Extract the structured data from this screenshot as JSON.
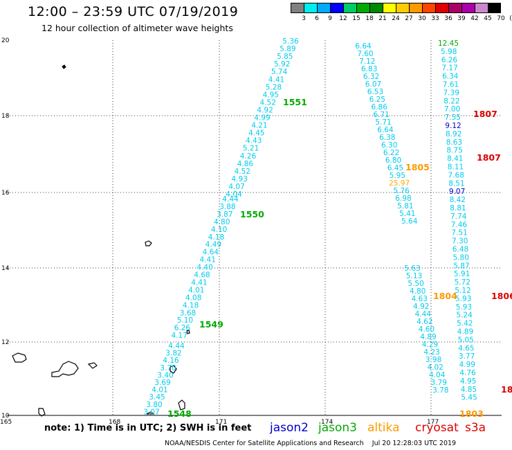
{
  "title": "12:00 – 23:59 UTC 07/19/2019",
  "subtitle": "12 hour collection of altimeter wave heights",
  "scale": {
    "colors": [
      "#808080",
      "#00eeee",
      "#00aaff",
      "#0000ff",
      "#00cc66",
      "#00aa00",
      "#008800",
      "#ffff00",
      "#ffcc00",
      "#ff9900",
      "#ff4400",
      "#dd0000",
      "#aa0066",
      "#aa00aa",
      "#cc88cc",
      "#000000"
    ],
    "labels": [
      "3",
      "6",
      "9",
      "12",
      "15",
      "18",
      "21",
      "24",
      "27",
      "30",
      "33",
      "36",
      "39",
      "42",
      "45",
      "70",
      "(ft)"
    ]
  },
  "axes": {
    "x_ticks": [
      "165",
      "168",
      "171",
      "174",
      "177"
    ],
    "y_ticks": [
      "20",
      "18",
      "16",
      "14",
      "12",
      "10"
    ]
  },
  "colors": {
    "jason2": "#0000cc",
    "jason3": "#00aa00",
    "altika": "#ff9900",
    "cryosat": "#dd0000",
    "wave_low": "#00ccee",
    "wave_mid": "#00aa00",
    "wave_high": "#ffaa00",
    "wave_blue": "#0000cc"
  },
  "tracks": [
    {
      "id": "1551",
      "color": "#00aa00",
      "values": [
        "5.36",
        "5.89",
        "5.85",
        "5.92",
        "5.74",
        "4.41",
        "5.28",
        "4.95",
        "4.52",
        "4.92",
        "4.99",
        "4.21",
        "4.45",
        "4.43",
        "5.21",
        "4.26",
        "4.86",
        "4.52",
        "4.93",
        "4.07",
        "4.04"
      ]
    },
    {
      "id": "1550",
      "color": "#00aa00",
      "values": [
        "4.44",
        "3.88",
        "3.87",
        "4.80",
        "4.10",
        "4.18",
        "4.49",
        "4.64",
        "4.41",
        "4.40",
        "4.68",
        "4.41",
        "4.01",
        "4.08",
        "4.18",
        "3.68",
        "5.10",
        "6.26",
        "4.17"
      ]
    },
    {
      "id": "1549",
      "color": "#00aa00",
      "values": [
        "4.44",
        "3.82",
        "4.16",
        "3.70",
        "3.40",
        "3.69",
        "4.01",
        "3.45",
        "3.80",
        "3.07"
      ]
    },
    {
      "id": "1805",
      "color": "#ff9900",
      "values": [
        "6.64",
        "7.60",
        "7.12",
        "6.83",
        "6.32",
        "6.07",
        "6.53",
        "6.25",
        "6.86",
        "6.71",
        "5.71",
        "6.64",
        "6.38",
        "6.30",
        "6.22",
        "6.80",
        "6.45",
        "5.95",
        "25.97",
        "5.76",
        "6.98",
        "5.81",
        "5.41",
        "5.64"
      ]
    },
    {
      "id": "1804",
      "color": "#ff9900",
      "values": [
        "5.63",
        "5.13",
        "5.50",
        "4.80",
        "4.63",
        "4.92",
        "4.44",
        "4.62",
        "4.60",
        "4.89",
        "4.29",
        "4.23",
        "3.98",
        "4.02",
        "4.04",
        "3.79",
        "3.78"
      ]
    },
    {
      "id": "1807",
      "color": "#dd0000",
      "values": [
        "12.45",
        "5.98",
        "6.26",
        "7.17",
        "6.34",
        "7.61",
        "7.39",
        "8.22",
        "7.00",
        "7.55",
        "9.12",
        "8.92",
        "8.63",
        "8.75",
        "8.41",
        "8.11",
        "7.68",
        "8.51",
        "9.07",
        "8.42",
        "8.81",
        "7.74",
        "7.46",
        "7.51",
        "7.30",
        "6.48",
        "5.80",
        "5.87",
        "5.91",
        "5.72",
        "5.12",
        "5.93",
        "5.93",
        "5.24",
        "5.42",
        "4.89",
        "5.05",
        "4.65",
        "3.77",
        "4.99",
        "4.76",
        "4.95",
        "4.85",
        "5.45"
      ]
    }
  ],
  "pass_labels": [
    "1551",
    "1550",
    "1549",
    "1548",
    "1805",
    "1804",
    "1803",
    "1807",
    "1807",
    "1806",
    "18"
  ],
  "legend": {
    "note": "note: 1) Time is in UTC; 2) SWH is in feet",
    "jason2": "jason2",
    "jason3": "jason3",
    "altika": "altika",
    "cryosat": "cryosat",
    "s3a": "s3a"
  },
  "footer": "NOAA/NESDIS Center for Satellite Applications and Research    Jul 20 12:28:03 UTC 2019"
}
